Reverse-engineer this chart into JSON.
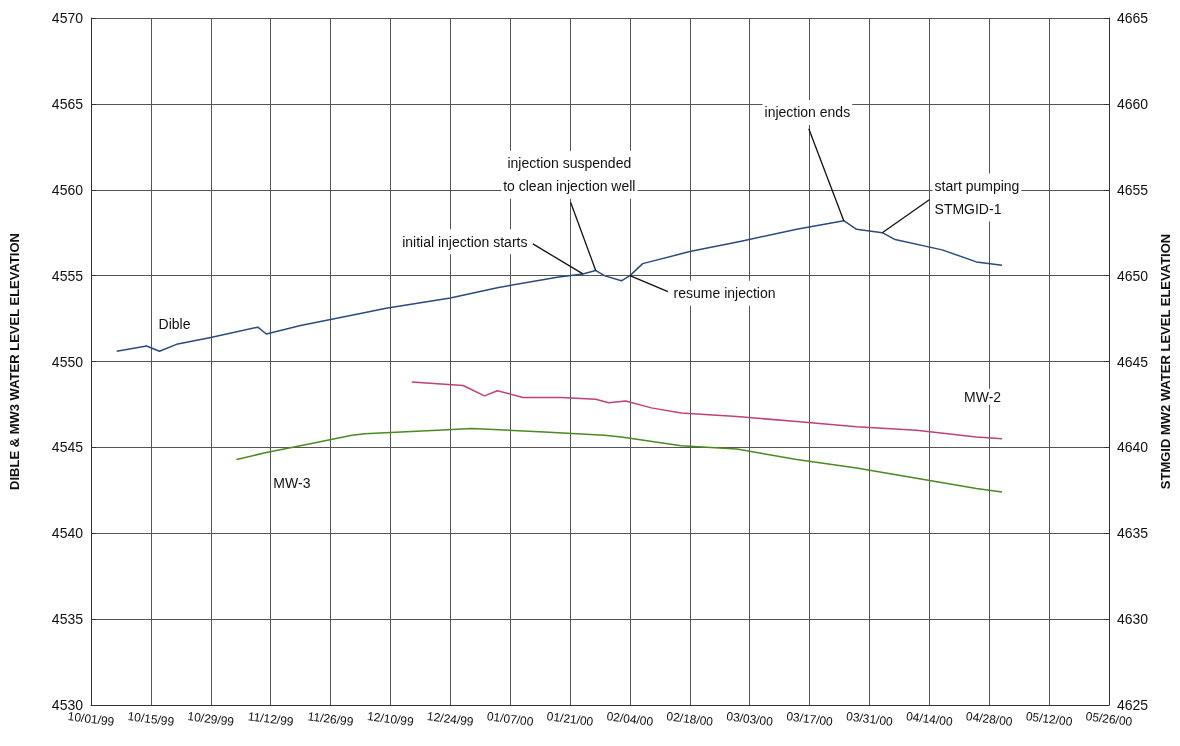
{
  "chart_data": {
    "type": "line",
    "ylabel": "DIBLE & MW3 WATER LEVEL ELEVATION",
    "y2label": "STMGID MW2 WATER LEVEL ELEVATION",
    "xlim": [
      "1999-10-01",
      "2000-05-26"
    ],
    "xticks": [
      {
        "value": "1999-10-01",
        "label": "10/01/99"
      },
      {
        "value": "1999-10-15",
        "label": "10/15/99"
      },
      {
        "value": "1999-10-29",
        "label": "10/29/99"
      },
      {
        "value": "1999-11-12",
        "label": "11/12/99"
      },
      {
        "value": "1999-11-26",
        "label": "11/26/99"
      },
      {
        "value": "1999-12-10",
        "label": "12/10/99"
      },
      {
        "value": "1999-12-24",
        "label": "12/24/99"
      },
      {
        "value": "2000-01-07",
        "label": "01/07/00"
      },
      {
        "value": "2000-01-21",
        "label": "01/21/00"
      },
      {
        "value": "2000-02-04",
        "label": "02/04/00"
      },
      {
        "value": "2000-02-18",
        "label": "02/18/00"
      },
      {
        "value": "2000-03-03",
        "label": "03/03/00"
      },
      {
        "value": "2000-03-17",
        "label": "03/17/00"
      },
      {
        "value": "2000-03-31",
        "label": "03/31/00"
      },
      {
        "value": "2000-04-14",
        "label": "04/14/00"
      },
      {
        "value": "2000-04-28",
        "label": "04/28/00"
      },
      {
        "value": "2000-05-12",
        "label": "05/12/00"
      },
      {
        "value": "2000-05-26",
        "label": "05/26/00"
      }
    ],
    "ylim": [
      4530,
      4570
    ],
    "yticks": [
      4530,
      4535,
      4540,
      4545,
      4550,
      4555,
      4560,
      4565,
      4570
    ],
    "y2lim": [
      4625,
      4665
    ],
    "y2ticks": [
      4625,
      4630,
      4635,
      4640,
      4645,
      4650,
      4655,
      4660,
      4665
    ],
    "grid": true,
    "legend": false,
    "marker": "none",
    "line_style": "solid",
    "series": [
      {
        "name": "Dible",
        "color": "#2b4a7e",
        "x": [
          "1999-10-07",
          "1999-10-14",
          "1999-10-17",
          "1999-10-21",
          "1999-10-29",
          "1999-11-09",
          "1999-11-11",
          "1999-11-19",
          "1999-12-03",
          "1999-12-09",
          "1999-12-24",
          "2000-01-04",
          "2000-01-18",
          "2000-01-24",
          "2000-01-27",
          "2000-01-29",
          "2000-02-02",
          "2000-02-04",
          "2000-02-07",
          "2000-02-18",
          "2000-03-01",
          "2000-03-14",
          "2000-03-25",
          "2000-03-28",
          "2000-04-03",
          "2000-04-06",
          "2000-04-17",
          "2000-04-25",
          "2000-05-01"
        ],
        "values": [
          4550.6,
          4550.9,
          4550.6,
          4551.0,
          4551.4,
          4552.0,
          4551.6,
          4552.1,
          4552.8,
          4553.1,
          4553.7,
          4554.3,
          4554.9,
          4555.1,
          4555.3,
          4555.0,
          4554.7,
          4555.0,
          4555.7,
          4556.4,
          4557.0,
          4557.7,
          4558.2,
          4557.7,
          4557.5,
          4557.1,
          4556.5,
          4555.8,
          4555.6
        ]
      },
      {
        "name": "MW-2",
        "color": "#c0407a",
        "axis": "y2",
        "x": [
          "1999-12-15",
          "1999-12-27",
          "2000-01-01",
          "2000-01-04",
          "2000-01-10",
          "2000-01-19",
          "2000-01-27",
          "2000-01-30",
          "2000-02-03",
          "2000-02-09",
          "2000-02-16",
          "2000-02-29",
          "2000-03-14",
          "2000-03-28",
          "2000-04-11",
          "2000-04-25",
          "2000-05-01"
        ],
        "values": [
          4643.8,
          4643.6,
          4643.0,
          4643.3,
          4642.9,
          4642.9,
          4642.8,
          4642.6,
          4642.7,
          4642.3,
          4642.0,
          4641.8,
          4641.5,
          4641.2,
          4641.0,
          4640.6,
          4640.5
        ]
      },
      {
        "name": "MW-3",
        "color": "#4a8a1e",
        "x": [
          "1999-11-04",
          "1999-11-11",
          "1999-11-21",
          "1999-12-01",
          "1999-12-04",
          "1999-12-21",
          "1999-12-29",
          "2000-01-15",
          "2000-01-29",
          "2000-02-02",
          "2000-02-16",
          "2000-02-29",
          "2000-03-14",
          "2000-03-28",
          "2000-04-11",
          "2000-04-25",
          "2000-05-01"
        ],
        "values": [
          4544.3,
          4544.7,
          4545.2,
          4545.7,
          4545.8,
          4546.0,
          4546.1,
          4545.9,
          4545.7,
          4545.6,
          4545.1,
          4544.9,
          4544.3,
          4543.8,
          4543.2,
          4542.6,
          4542.4
        ]
      }
    ],
    "annotations": [
      {
        "text": "initial injection starts",
        "x": "2000-01-24",
        "y": 4555.1
      },
      {
        "text": "injection suspended\nto clean injection well",
        "x": "2000-01-27",
        "y": 4555.3
      },
      {
        "text": "resume injection",
        "x": "2000-02-04",
        "y": 4555.0
      },
      {
        "text": "injection ends",
        "x": "2000-03-25",
        "y": 4558.2
      },
      {
        "text": "start pumping\nSTMGID-1",
        "x": "2000-04-03",
        "y": 4557.5
      }
    ]
  }
}
